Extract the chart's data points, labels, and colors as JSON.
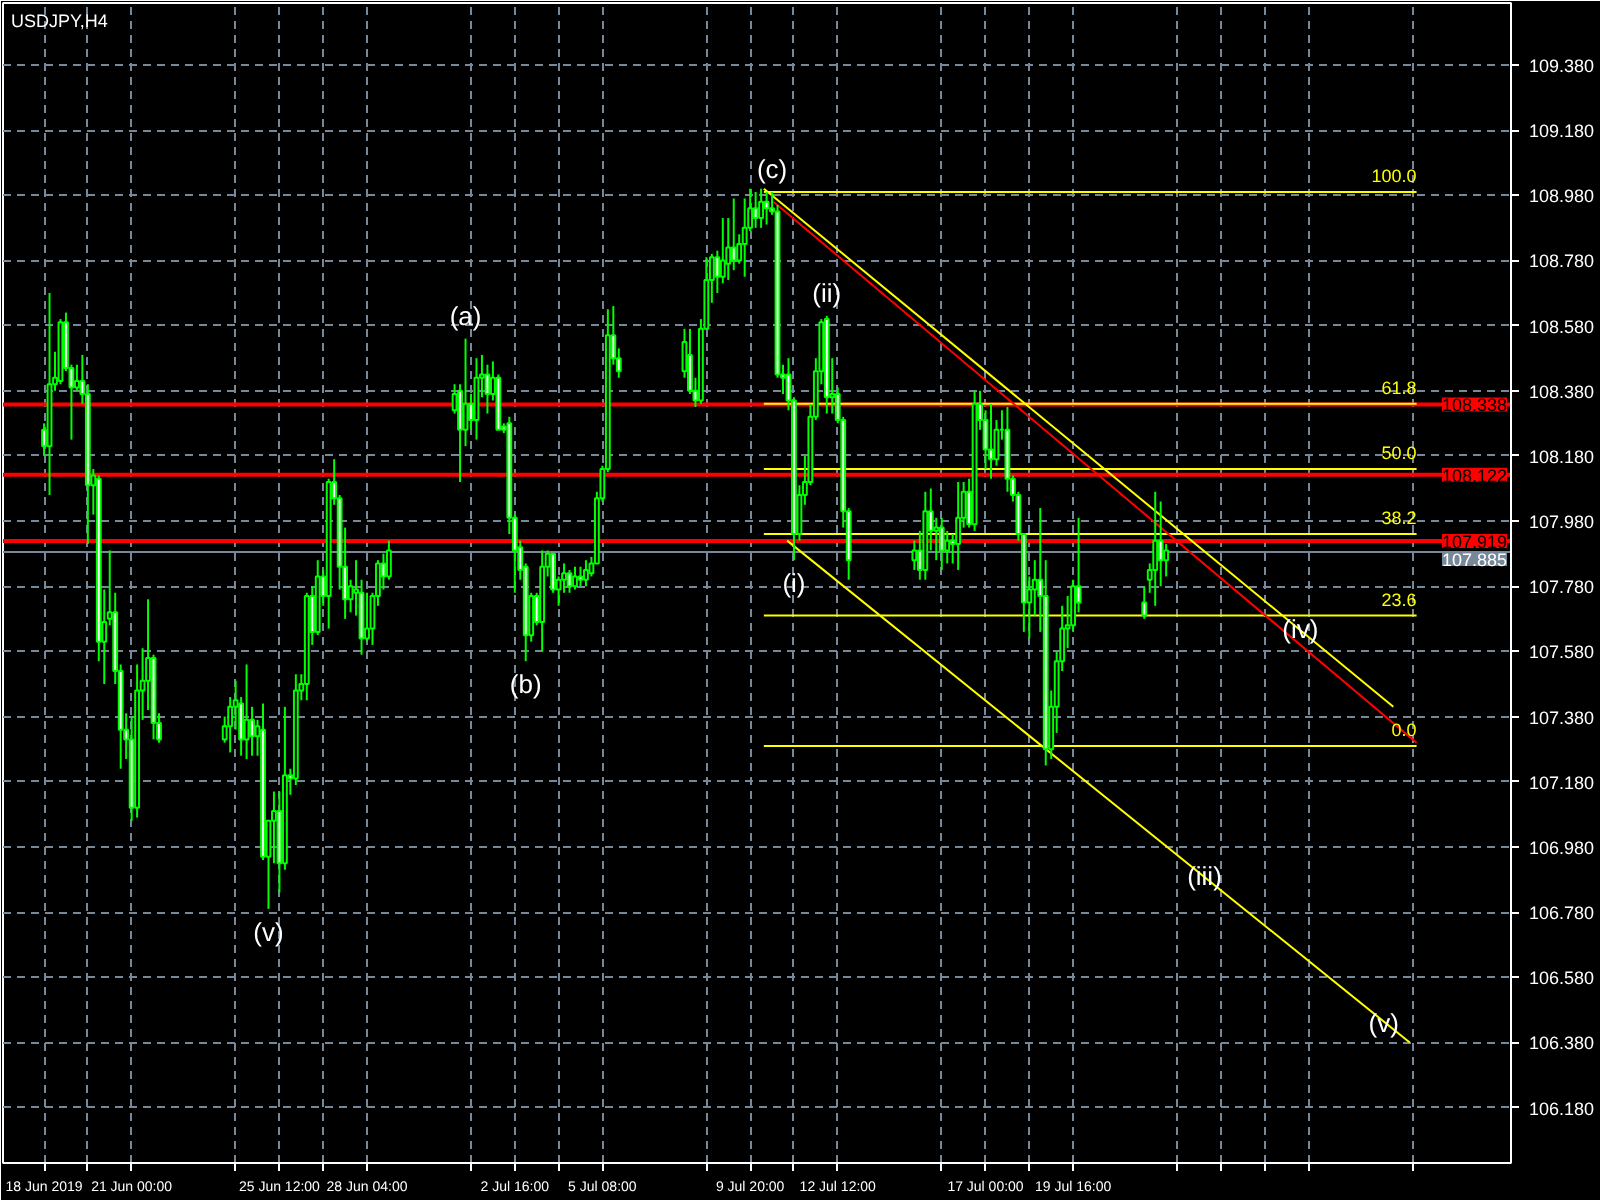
{
  "chart_data": {
    "type": "candlestick",
    "title": "USDJPY,H4",
    "color": "#00ff00",
    "grid": true,
    "xlim": [
      "2019-06-17T02:00",
      "2019-08-02T00:00"
    ],
    "ylim": [
      106.01,
      109.57
    ],
    "xticks": [
      {
        "value": "2019-06-18T08:00",
        "label": "18 Jun 2019"
      },
      {
        "value": "2019-06-19T16:00",
        "label": null
      },
      {
        "value": "2019-06-21T00:00",
        "label": "21 Jun 00:00"
      },
      {
        "value": "2019-06-24T04:00",
        "label": null
      },
      {
        "value": "2019-06-25T12:00",
        "label": "25 Jun 12:00"
      },
      {
        "value": "2019-06-26T20:00",
        "label": null
      },
      {
        "value": "2019-06-28T04:00",
        "label": "28 Jun 04:00"
      },
      {
        "value": "2019-07-01T08:00",
        "label": null
      },
      {
        "value": "2019-07-02T16:00",
        "label": "2 Jul 16:00"
      },
      {
        "value": "2019-07-04T00:00",
        "label": null
      },
      {
        "value": "2019-07-05T08:00",
        "label": "5 Jul 08:00"
      },
      {
        "value": "2019-07-08T12:00",
        "label": null
      },
      {
        "value": "2019-07-09T20:00",
        "label": "9 Jul 20:00"
      },
      {
        "value": "2019-07-11T04:00",
        "label": null
      },
      {
        "value": "2019-07-12T12:00",
        "label": "12 Jul 12:00"
      },
      {
        "value": "2019-07-15T16:00",
        "label": null
      },
      {
        "value": "2019-07-17T00:00",
        "label": "17 Jul 00:00"
      },
      {
        "value": "2019-07-18T08:00",
        "label": null
      },
      {
        "value": "2019-07-19T16:00",
        "label": "19 Jul 16:00"
      },
      {
        "value": "2019-07-22T20:00",
        "label": null
      },
      {
        "value": "2019-07-24T04:00",
        "label": null
      },
      {
        "value": "2019-07-25T12:00",
        "label": null
      },
      {
        "value": "2019-07-26T20:00",
        "label": null
      },
      {
        "value": "2019-07-30T00:00",
        "label": null
      }
    ],
    "yticks": [
      {
        "value": 106.18,
        "label": "106.180"
      },
      {
        "value": 106.38,
        "label": "106.380"
      },
      {
        "value": 106.58,
        "label": "106.580"
      },
      {
        "value": 106.78,
        "label": "106.780"
      },
      {
        "value": 106.98,
        "label": "106.980"
      },
      {
        "value": 107.18,
        "label": "107.180"
      },
      {
        "value": 107.38,
        "label": "107.380"
      },
      {
        "value": 107.58,
        "label": "107.580"
      },
      {
        "value": 107.78,
        "label": "107.780"
      },
      {
        "value": 107.98,
        "label": "107.980"
      },
      {
        "value": 108.18,
        "label": "108.180"
      },
      {
        "value": 108.38,
        "label": "108.380"
      },
      {
        "value": 108.58,
        "label": "108.580"
      },
      {
        "value": 108.78,
        "label": "108.780"
      },
      {
        "value": 108.98,
        "label": "108.980"
      },
      {
        "value": 109.18,
        "label": "109.180"
      },
      {
        "value": 109.38,
        "label": "109.380"
      }
    ],
    "x": [
      "2019-06-18T08:00",
      "2019-06-18T12:00",
      "2019-06-18T16:00",
      "2019-06-18T20:00",
      "2019-06-19T00:00",
      "2019-06-19T04:00",
      "2019-06-19T08:00",
      "2019-06-19T12:00",
      "2019-06-19T16:00",
      "2019-06-19T20:00",
      "2019-06-20T00:00",
      "2019-06-20T04:00",
      "2019-06-20T08:00",
      "2019-06-20T12:00",
      "2019-06-20T16:00",
      "2019-06-20T20:00",
      "2019-06-21T00:00",
      "2019-06-21T04:00",
      "2019-06-21T08:00",
      "2019-06-21T12:00",
      "2019-06-21T16:00",
      "2019-06-21T20:00",
      "2019-06-23T20:00",
      "2019-06-24T00:00",
      "2019-06-24T04:00",
      "2019-06-24T08:00",
      "2019-06-24T12:00",
      "2019-06-24T16:00",
      "2019-06-24T20:00",
      "2019-06-25T00:00",
      "2019-06-25T04:00",
      "2019-06-25T08:00",
      "2019-06-25T12:00",
      "2019-06-25T16:00",
      "2019-06-25T20:00",
      "2019-06-26T00:00",
      "2019-06-26T04:00",
      "2019-06-26T08:00",
      "2019-06-26T12:00",
      "2019-06-26T16:00",
      "2019-06-26T20:00",
      "2019-06-27T00:00",
      "2019-06-27T04:00",
      "2019-06-27T08:00",
      "2019-06-27T12:00",
      "2019-06-27T16:00",
      "2019-06-27T20:00",
      "2019-06-28T00:00",
      "2019-06-28T04:00",
      "2019-06-28T08:00",
      "2019-06-28T12:00",
      "2019-06-28T16:00",
      "2019-06-28T20:00",
      "2019-06-30T20:00",
      "2019-07-01T00:00",
      "2019-07-01T04:00",
      "2019-07-01T08:00",
      "2019-07-01T12:00",
      "2019-07-01T16:00",
      "2019-07-01T20:00",
      "2019-07-02T00:00",
      "2019-07-02T04:00",
      "2019-07-02T08:00",
      "2019-07-02T12:00",
      "2019-07-02T16:00",
      "2019-07-02T20:00",
      "2019-07-03T00:00",
      "2019-07-03T04:00",
      "2019-07-03T08:00",
      "2019-07-03T12:00",
      "2019-07-03T16:00",
      "2019-07-03T20:00",
      "2019-07-04T00:00",
      "2019-07-04T04:00",
      "2019-07-04T08:00",
      "2019-07-04T12:00",
      "2019-07-04T16:00",
      "2019-07-04T20:00",
      "2019-07-05T00:00",
      "2019-07-05T04:00",
      "2019-07-05T08:00",
      "2019-07-05T12:00",
      "2019-07-05T16:00",
      "2019-07-05T20:00",
      "2019-07-07T20:00",
      "2019-07-08T00:00",
      "2019-07-08T04:00",
      "2019-07-08T08:00",
      "2019-07-08T12:00",
      "2019-07-08T16:00",
      "2019-07-08T20:00",
      "2019-07-09T00:00",
      "2019-07-09T04:00",
      "2019-07-09T08:00",
      "2019-07-09T12:00",
      "2019-07-09T16:00",
      "2019-07-09T20:00",
      "2019-07-10T00:00",
      "2019-07-10T04:00",
      "2019-07-10T08:00",
      "2019-07-10T12:00",
      "2019-07-10T16:00",
      "2019-07-10T20:00",
      "2019-07-11T00:00",
      "2019-07-11T04:00",
      "2019-07-11T08:00",
      "2019-07-11T12:00",
      "2019-07-11T16:00",
      "2019-07-11T20:00",
      "2019-07-12T00:00",
      "2019-07-12T04:00",
      "2019-07-12T08:00",
      "2019-07-12T12:00",
      "2019-07-12T16:00",
      "2019-07-12T20:00",
      "2019-07-14T20:00",
      "2019-07-15T00:00",
      "2019-07-15T04:00",
      "2019-07-15T08:00",
      "2019-07-15T12:00",
      "2019-07-15T16:00",
      "2019-07-15T20:00",
      "2019-07-16T00:00",
      "2019-07-16T04:00",
      "2019-07-16T08:00",
      "2019-07-16T12:00",
      "2019-07-16T16:00",
      "2019-07-16T20:00",
      "2019-07-17T00:00",
      "2019-07-17T04:00",
      "2019-07-17T08:00",
      "2019-07-17T12:00",
      "2019-07-17T16:00",
      "2019-07-17T20:00",
      "2019-07-18T00:00",
      "2019-07-18T04:00",
      "2019-07-18T08:00",
      "2019-07-18T12:00",
      "2019-07-18T16:00",
      "2019-07-18T20:00",
      "2019-07-19T00:00",
      "2019-07-19T04:00",
      "2019-07-19T08:00",
      "2019-07-19T12:00",
      "2019-07-19T16:00",
      "2019-07-19T20:00",
      "2019-07-21T20:00",
      "2019-07-22T00:00",
      "2019-07-22T04:00",
      "2019-07-22T08:00",
      "2019-07-22T12:00"
    ],
    "ohlc": [
      [
        108.26,
        108.28,
        108.18,
        108.21
      ],
      [
        108.21,
        108.68,
        108.06,
        108.4
      ],
      [
        108.4,
        108.5,
        108.38,
        108.42
      ],
      [
        108.41,
        108.6,
        108.4,
        108.59
      ],
      [
        108.59,
        108.62,
        108.44,
        108.45
      ],
      [
        108.45,
        108.46,
        108.23,
        108.39
      ],
      [
        108.39,
        108.46,
        108.38,
        108.41
      ],
      [
        108.41,
        108.49,
        108.34,
        108.37
      ],
      [
        108.37,
        108.4,
        107.91,
        108.09
      ],
      [
        108.09,
        108.14,
        108.0,
        108.12
      ],
      [
        108.11,
        108.12,
        107.55,
        107.61
      ],
      [
        107.61,
        107.77,
        107.48,
        107.67
      ],
      [
        107.68,
        107.89,
        107.66,
        107.7
      ],
      [
        107.7,
        107.76,
        107.48,
        107.52
      ],
      [
        107.52,
        107.54,
        107.22,
        107.34
      ],
      [
        107.34,
        107.39,
        107.25,
        107.31
      ],
      [
        107.31,
        107.38,
        107.06,
        107.1
      ],
      [
        107.1,
        107.54,
        107.07,
        107.46
      ],
      [
        107.46,
        107.59,
        107.37,
        107.49
      ],
      [
        107.49,
        107.74,
        107.4,
        107.56
      ],
      [
        107.56,
        107.57,
        107.31,
        107.36
      ],
      [
        107.36,
        107.39,
        107.3,
        107.31
      ],
      [
        107.31,
        107.38,
        107.3,
        107.35
      ],
      [
        107.35,
        107.44,
        107.27,
        107.41
      ],
      [
        107.41,
        107.49,
        107.34,
        107.43
      ],
      [
        107.42,
        107.44,
        107.26,
        107.31
      ],
      [
        107.31,
        107.54,
        107.25,
        107.37
      ],
      [
        107.37,
        107.41,
        107.26,
        107.32
      ],
      [
        107.32,
        107.37,
        107.26,
        107.35
      ],
      [
        107.34,
        107.42,
        106.94,
        106.95
      ],
      [
        106.95,
        107.06,
        106.79,
        107.06
      ],
      [
        107.06,
        107.15,
        106.93,
        107.09
      ],
      [
        107.09,
        107.15,
        106.84,
        106.93
      ],
      [
        106.93,
        107.41,
        106.91,
        107.2
      ],
      [
        107.2,
        107.22,
        107.14,
        107.19
      ],
      [
        107.19,
        107.51,
        107.17,
        107.46
      ],
      [
        107.46,
        107.51,
        107.43,
        107.48
      ],
      [
        107.48,
        107.76,
        107.43,
        107.75
      ],
      [
        107.75,
        107.78,
        107.6,
        107.64
      ],
      [
        107.64,
        107.86,
        107.63,
        107.81
      ],
      [
        107.81,
        107.83,
        107.72,
        107.75
      ],
      [
        107.75,
        108.11,
        107.65,
        108.1
      ],
      [
        108.1,
        108.17,
        108.03,
        108.05
      ],
      [
        108.05,
        108.06,
        107.77,
        107.84
      ],
      [
        107.84,
        107.96,
        107.68,
        107.74
      ],
      [
        107.74,
        107.8,
        107.7,
        107.78
      ],
      [
        107.76,
        107.86,
        107.69,
        107.77
      ],
      [
        107.76,
        107.8,
        107.57,
        107.62
      ],
      [
        107.62,
        107.76,
        107.61,
        107.65
      ],
      [
        107.65,
        107.76,
        107.6,
        107.75
      ],
      [
        107.75,
        107.86,
        107.72,
        107.85
      ],
      [
        107.85,
        107.88,
        107.77,
        107.81
      ],
      [
        107.81,
        107.92,
        107.8,
        107.89
      ],
      [
        108.32,
        108.4,
        108.31,
        108.37
      ],
      [
        108.38,
        108.4,
        108.1,
        108.26
      ],
      [
        108.26,
        108.54,
        108.21,
        108.34
      ],
      [
        108.34,
        108.37,
        108.26,
        108.29
      ],
      [
        108.29,
        108.48,
        108.23,
        108.42
      ],
      [
        108.42,
        108.49,
        108.36,
        108.43
      ],
      [
        108.43,
        108.46,
        108.31,
        108.37
      ],
      [
        108.37,
        108.47,
        108.35,
        108.42
      ],
      [
        108.42,
        108.43,
        108.26,
        108.26
      ],
      [
        108.27,
        108.28,
        108.25,
        108.26
      ],
      [
        108.28,
        108.3,
        107.94,
        107.99
      ],
      [
        107.99,
        108.0,
        107.76,
        107.89
      ],
      [
        107.9,
        107.92,
        107.8,
        107.83
      ],
      [
        107.84,
        107.85,
        107.55,
        107.63
      ],
      [
        107.63,
        107.76,
        107.61,
        107.75
      ],
      [
        107.75,
        107.76,
        107.66,
        107.67
      ],
      [
        107.67,
        107.89,
        107.58,
        107.84
      ],
      [
        107.84,
        107.89,
        107.81,
        107.88
      ],
      [
        107.88,
        107.88,
        107.76,
        107.77
      ],
      [
        107.77,
        107.81,
        107.72,
        107.8
      ],
      [
        107.8,
        107.85,
        107.76,
        107.82
      ],
      [
        107.82,
        107.83,
        107.76,
        107.78
      ],
      [
        107.78,
        107.84,
        107.77,
        107.81
      ],
      [
        107.81,
        107.84,
        107.78,
        107.8
      ],
      [
        107.8,
        107.86,
        107.78,
        107.83
      ],
      [
        107.82,
        107.87,
        107.81,
        107.85
      ],
      [
        107.85,
        108.07,
        107.85,
        108.05
      ],
      [
        108.05,
        108.15,
        108.04,
        108.14
      ],
      [
        108.14,
        108.63,
        108.13,
        108.55
      ],
      [
        108.55,
        108.64,
        108.46,
        108.48
      ],
      [
        108.48,
        108.51,
        108.42,
        108.44
      ],
      [
        108.44,
        108.57,
        108.42,
        108.53
      ],
      [
        108.49,
        108.57,
        108.37,
        108.38
      ],
      [
        108.38,
        108.42,
        108.33,
        108.35
      ],
      [
        108.35,
        108.6,
        108.34,
        108.57
      ],
      [
        108.57,
        108.79,
        108.57,
        108.72
      ],
      [
        108.72,
        108.8,
        108.65,
        108.79
      ],
      [
        108.79,
        108.81,
        108.68,
        108.73
      ],
      [
        108.73,
        108.91,
        108.71,
        108.78
      ],
      [
        108.77,
        108.91,
        108.72,
        108.82
      ],
      [
        108.82,
        108.97,
        108.75,
        108.78
      ],
      [
        108.78,
        108.86,
        108.77,
        108.83
      ],
      [
        108.83,
        108.97,
        108.73,
        108.88
      ],
      [
        108.88,
        109.0,
        108.87,
        108.94
      ],
      [
        108.94,
        108.99,
        108.88,
        108.91
      ],
      [
        108.91,
        109.0,
        108.88,
        108.96
      ],
      [
        108.96,
        108.99,
        108.89,
        108.94
      ],
      [
        108.94,
        108.99,
        108.92,
        108.93
      ],
      [
        108.93,
        108.95,
        108.42,
        108.43
      ],
      [
        108.43,
        108.46,
        108.37,
        108.42
      ],
      [
        108.43,
        108.48,
        108.32,
        108.35
      ],
      [
        108.35,
        108.36,
        107.86,
        107.94
      ],
      [
        107.94,
        108.09,
        107.92,
        108.06
      ],
      [
        108.06,
        108.18,
        108.03,
        108.1
      ],
      [
        108.1,
        108.34,
        108.09,
        108.3
      ],
      [
        108.3,
        108.48,
        108.29,
        108.44
      ],
      [
        108.44,
        108.6,
        108.4,
        108.59
      ],
      [
        108.6,
        108.61,
        108.31,
        108.36
      ],
      [
        108.36,
        108.48,
        108.31,
        108.37
      ],
      [
        108.37,
        108.39,
        108.28,
        108.29
      ],
      [
        108.29,
        108.3,
        107.96,
        108.01
      ],
      [
        108.01,
        108.02,
        107.8,
        107.86
      ],
      [
        107.86,
        107.92,
        107.83,
        107.89
      ],
      [
        107.89,
        107.95,
        107.8,
        107.83
      ],
      [
        107.83,
        108.07,
        107.8,
        108.01
      ],
      [
        108.01,
        108.08,
        107.89,
        107.95
      ],
      [
        107.95,
        107.99,
        107.86,
        107.96
      ],
      [
        107.96,
        107.99,
        107.83,
        107.89
      ],
      [
        107.89,
        107.95,
        107.85,
        107.92
      ],
      [
        107.92,
        107.94,
        107.85,
        107.91
      ],
      [
        107.91,
        108.1,
        107.83,
        107.99
      ],
      [
        107.99,
        108.1,
        107.96,
        108.07
      ],
      [
        108.07,
        108.11,
        107.96,
        107.97
      ],
      [
        107.97,
        108.38,
        107.95,
        108.34
      ],
      [
        108.34,
        108.38,
        108.26,
        108.29
      ],
      [
        108.29,
        108.32,
        108.14,
        108.2
      ],
      [
        108.2,
        108.34,
        108.11,
        108.17
      ],
      [
        108.17,
        108.29,
        108.15,
        108.26
      ],
      [
        108.26,
        108.32,
        108.23,
        108.26
      ],
      [
        108.26,
        108.33,
        108.07,
        108.11
      ],
      [
        108.11,
        108.12,
        108.04,
        108.06
      ],
      [
        108.06,
        108.07,
        107.92,
        107.94
      ],
      [
        107.94,
        107.94,
        107.64,
        107.73
      ],
      [
        107.73,
        107.81,
        107.62,
        107.77
      ],
      [
        107.77,
        107.86,
        107.69,
        107.8
      ],
      [
        107.8,
        108.02,
        107.64,
        107.75
      ],
      [
        107.75,
        107.86,
        107.23,
        107.28
      ],
      [
        107.28,
        107.46,
        107.25,
        107.41
      ],
      [
        107.41,
        107.58,
        107.33,
        107.55
      ],
      [
        107.55,
        107.72,
        107.52,
        107.65
      ],
      [
        107.65,
        107.75,
        107.59,
        107.66
      ],
      [
        107.66,
        107.8,
        107.64,
        107.78
      ],
      [
        107.78,
        107.99,
        107.7,
        107.73
      ],
      [
        107.73,
        107.78,
        107.68,
        107.69
      ],
      [
        107.8,
        107.85,
        107.76,
        107.83
      ],
      [
        107.83,
        108.07,
        107.72,
        107.92
      ],
      [
        107.92,
        108.04,
        107.78,
        107.86
      ],
      [
        107.86,
        107.91,
        107.81,
        107.89
      ]
    ],
    "series": [
      {
        "type": "line",
        "name": "100.0",
        "color": "#ffff00",
        "x": [
          "2019-07-10T06:00",
          "2019-07-30T03:00"
        ],
        "values": [
          108.99,
          108.99
        ]
      },
      {
        "type": "line",
        "name": "61.8",
        "color": "#ffff00",
        "x": [
          "2019-07-10T06:00",
          "2019-07-30T03:00"
        ],
        "values": [
          108.34,
          108.34
        ]
      },
      {
        "type": "line",
        "name": "50.0",
        "color": "#ffff00",
        "x": [
          "2019-07-10T06:00",
          "2019-07-30T03:00"
        ],
        "values": [
          108.14,
          108.14
        ]
      },
      {
        "type": "line",
        "name": "38.2",
        "color": "#ffff00",
        "x": [
          "2019-07-10T06:00",
          "2019-07-30T03:00"
        ],
        "values": [
          107.94,
          107.94
        ]
      },
      {
        "type": "line",
        "name": "23.6",
        "color": "#ffff00",
        "x": [
          "2019-07-10T06:00",
          "2019-07-30T03:00"
        ],
        "values": [
          107.69,
          107.69
        ]
      },
      {
        "type": "line",
        "name": "0.0",
        "color": "#ffff00",
        "x": [
          "2019-07-10T06:00",
          "2019-07-30T03:00"
        ],
        "values": [
          107.29,
          107.29
        ]
      },
      {
        "type": "line",
        "color": "#ffff00",
        "x": [
          "2019-07-10T06:00",
          "2019-07-29T10:00"
        ],
        "values": [
          109.0,
          107.41
        ]
      },
      {
        "type": "line",
        "color": "#ff0000",
        "x": [
          "2019-07-10T13:00",
          "2019-07-30T03:00"
        ],
        "values": [
          108.96,
          107.3
        ]
      },
      {
        "type": "line",
        "color": "#ffff00",
        "x": [
          "2019-07-10T23:00",
          "2019-07-29T22:00"
        ],
        "values": [
          107.92,
          106.38
        ]
      }
    ],
    "ref_lines": [
      {
        "axis": "y",
        "value": 108.338,
        "label": "108.338",
        "color": "#ff0000"
      },
      {
        "axis": "y",
        "value": 108.122,
        "label": "108.122",
        "color": "#ff0000"
      },
      {
        "axis": "y",
        "value": 107.919,
        "label": "107.919",
        "color": "#ff0000"
      },
      {
        "axis": "y",
        "value": 107.885,
        "label": "107.885",
        "color": "#778899"
      }
    ],
    "annotations": [
      {
        "text": "(v)",
        "x": "2019-06-25T04:00",
        "y": 106.79
      },
      {
        "text": "(a)",
        "x": "2019-07-01T04:00",
        "y": 108.54
      },
      {
        "text": "(b)",
        "x": "2019-07-03T00:00",
        "y": 107.55
      },
      {
        "text": "(c)",
        "x": "2019-07-10T12:00",
        "y": 108.99
      },
      {
        "text": "(i)",
        "x": "2019-07-11T04:00",
        "y": 107.86
      },
      {
        "text": "(ii)",
        "x": "2019-07-12T04:00",
        "y": 108.61
      },
      {
        "text": "(iii)",
        "x": "2019-07-23T16:00",
        "y": 106.89
      },
      {
        "text": "(iv)",
        "x": "2019-07-26T14:00",
        "y": 107.65
      },
      {
        "text": "(v)",
        "x": "2019-07-29T03:00",
        "y": 106.44
      }
    ]
  }
}
